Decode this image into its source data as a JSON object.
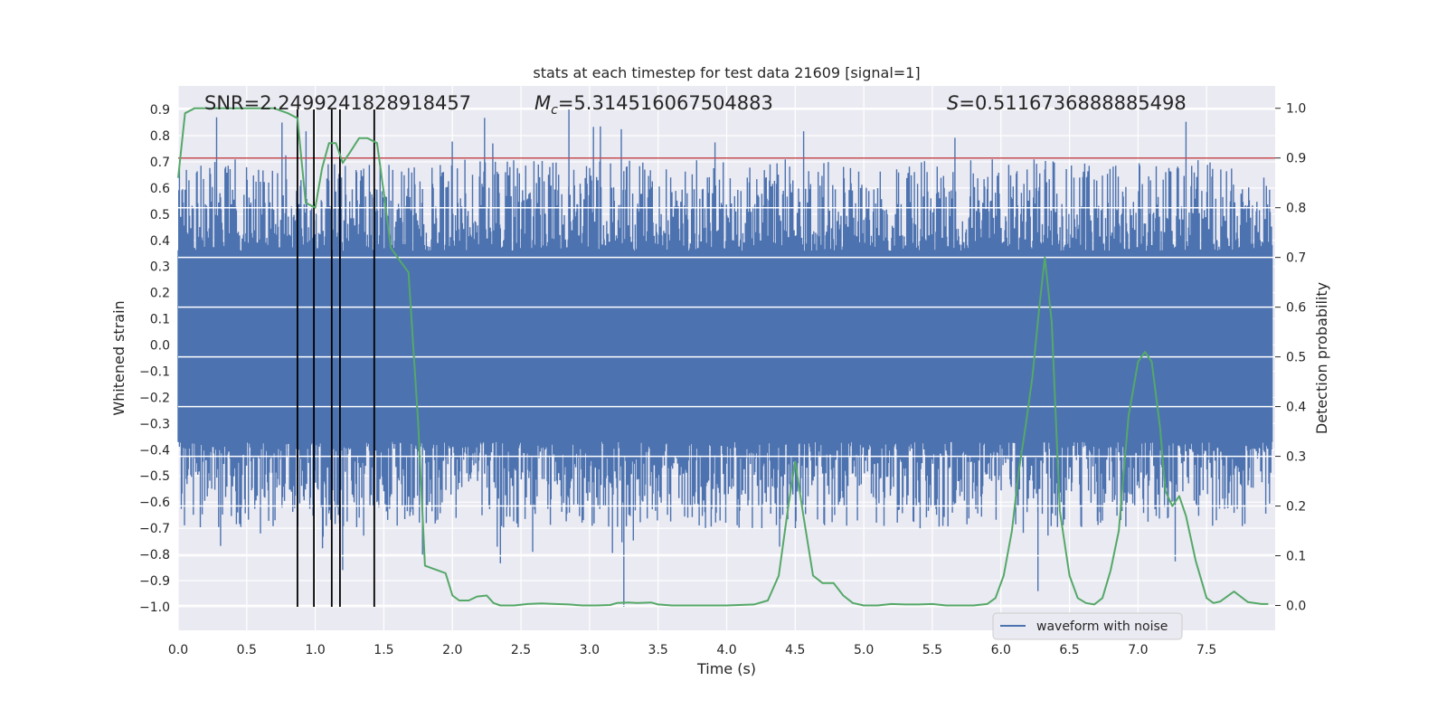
{
  "chart_data": {
    "type": "line",
    "title": "stats at each timestep for test data 21609 [signal=1]",
    "xlabel": "Time (s)",
    "ylabel": "Whitened strain",
    "ylabel_right": "Detection probability",
    "xlim": [
      0.0,
      8.0
    ],
    "ylim": [
      -1.09,
      0.99
    ],
    "ylim_right": [
      -0.05,
      1.045
    ],
    "x_ticks": [
      "0.0",
      "0.5",
      "1.0",
      "1.5",
      "2.0",
      "2.5",
      "3.0",
      "3.5",
      "4.0",
      "4.5",
      "5.0",
      "5.5",
      "6.0",
      "6.5",
      "7.0",
      "7.5"
    ],
    "y_ticks": [
      "0.9",
      "0.8",
      "0.7",
      "0.6",
      "0.5",
      "0.4",
      "0.3",
      "0.2",
      "0.1",
      "0.0",
      "−0.1",
      "−0.2",
      "−0.3",
      "−0.4",
      "−0.5",
      "−0.6",
      "−0.7",
      "−0.8",
      "−0.9",
      "−1.0"
    ],
    "y_ticks_right": [
      "1.0",
      "0.9",
      "0.8",
      "0.7",
      "0.6",
      "0.5",
      "0.4",
      "0.3",
      "0.2",
      "0.1",
      "0.0"
    ],
    "grid": true,
    "background": "#eaeaf2",
    "legend": {
      "position": "bottom-right",
      "entries": [
        "waveform with noise"
      ]
    },
    "annotations": {
      "snr": "SNR=2.2499241828918457",
      "mc_symbol": "M",
      "mc_sub": "c",
      "mc_value": "=5.314516067504883",
      "s_symbol": "S",
      "s_value": "=0.5116736888885498"
    },
    "threshold": {
      "value": 0.9,
      "axis": "right",
      "color": "#c44e52"
    },
    "vlines": {
      "x": [
        0.87,
        0.99,
        1.12,
        1.18,
        1.43
      ],
      "ymin": -1.0,
      "ymax": 0.9,
      "color": "#000000"
    },
    "series": [
      {
        "name": "waveform with noise",
        "type": "noise-band",
        "color": "#4c72b0",
        "x_range": [
          0.0,
          7.98
        ],
        "core_range": [
          -0.37,
          0.36
        ],
        "max_peak": 0.9,
        "min_trough": -1.0
      },
      {
        "type": "probability",
        "axis": "right",
        "color": "#55a868",
        "x": [
          0.0,
          0.05,
          0.12,
          0.2,
          0.3,
          0.4,
          0.5,
          0.6,
          0.7,
          0.8,
          0.87,
          0.93,
          1.0,
          1.05,
          1.1,
          1.15,
          1.2,
          1.25,
          1.32,
          1.38,
          1.45,
          1.5,
          1.55,
          1.6,
          1.68,
          1.75,
          1.8,
          1.85,
          1.95,
          2.0,
          2.05,
          2.12,
          2.18,
          2.25,
          2.3,
          2.35,
          2.45,
          2.55,
          2.65,
          2.75,
          2.85,
          2.95,
          3.05,
          3.15,
          3.2,
          3.28,
          3.35,
          3.45,
          3.5,
          3.6,
          3.8,
          4.0,
          4.2,
          4.3,
          4.38,
          4.45,
          4.5,
          4.56,
          4.63,
          4.7,
          4.78,
          4.85,
          4.92,
          5.0,
          5.1,
          5.2,
          5.3,
          5.4,
          5.5,
          5.6,
          5.7,
          5.8,
          5.9,
          5.96,
          6.02,
          6.08,
          6.13,
          6.18,
          6.23,
          6.28,
          6.32,
          6.37,
          6.43,
          6.5,
          6.56,
          6.62,
          6.68,
          6.74,
          6.8,
          6.86,
          6.93,
          7.0,
          7.05,
          7.1,
          7.16,
          7.2,
          7.25,
          7.3,
          7.35,
          7.42,
          7.5,
          7.55,
          7.6,
          7.7,
          7.8,
          7.9,
          7.95
        ],
        "y": [
          0.86,
          0.99,
          1.0,
          1.0,
          1.0,
          1.0,
          1.0,
          1.0,
          1.0,
          0.99,
          0.98,
          0.81,
          0.8,
          0.88,
          0.93,
          0.93,
          0.89,
          0.91,
          0.94,
          0.94,
          0.93,
          0.83,
          0.72,
          0.7,
          0.67,
          0.37,
          0.08,
          0.075,
          0.065,
          0.02,
          0.01,
          0.01,
          0.018,
          0.02,
          0.005,
          0.0,
          0.0,
          0.003,
          0.004,
          0.003,
          0.002,
          0.0,
          0.0,
          0.001,
          0.005,
          0.006,
          0.005,
          0.006,
          0.002,
          0.0,
          0.0,
          0.0,
          0.002,
          0.01,
          0.06,
          0.2,
          0.29,
          0.18,
          0.06,
          0.045,
          0.045,
          0.02,
          0.005,
          0.0,
          0.0,
          0.003,
          0.002,
          0.002,
          0.003,
          0.0,
          0.0,
          0.0,
          0.003,
          0.015,
          0.06,
          0.15,
          0.27,
          0.36,
          0.46,
          0.6,
          0.7,
          0.57,
          0.19,
          0.06,
          0.015,
          0.005,
          0.002,
          0.015,
          0.07,
          0.15,
          0.38,
          0.49,
          0.51,
          0.49,
          0.36,
          0.23,
          0.2,
          0.22,
          0.18,
          0.09,
          0.015,
          0.005,
          0.008,
          0.028,
          0.007,
          0.003,
          0.003
        ]
      }
    ]
  }
}
